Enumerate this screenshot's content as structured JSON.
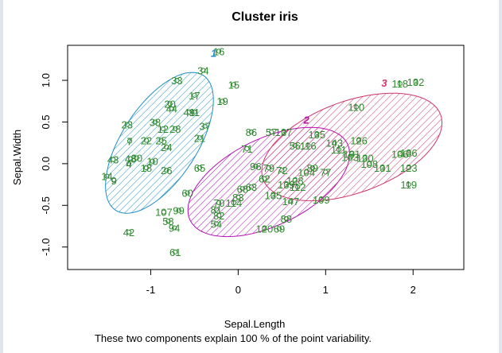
{
  "chart_data": {
    "type": "scatter",
    "title": "Cluster iris",
    "xlabel": "Sepal.Length",
    "ylabel": "Sepal.Width",
    "subtitle": "These two components explain 100 % of the point variability.",
    "xlim": [
      -1.95,
      2.58
    ],
    "ylim": [
      -1.27,
      1.42
    ],
    "x_ticks": [
      -1,
      0,
      1,
      2
    ],
    "y_ticks": [
      -1.0,
      -0.5,
      0.0,
      0.5,
      1.0
    ],
    "grid": false,
    "point_color": "#2e8b2e",
    "clusters": [
      {
        "label": "1",
        "color": "#1f8fc4",
        "center": [
          -0.28,
          1.33
        ],
        "ellipse": {
          "cx": -0.9,
          "cy": 0.25,
          "rx": 0.92,
          "ry": 0.45,
          "rotation_deg": 57
        }
      },
      {
        "label": "2",
        "color": "#b50fb5",
        "center": [
          0.78,
          0.53
        ],
        "ellipse": {
          "cx": 0.35,
          "cy": -0.22,
          "rx": 1.0,
          "ry": 0.52,
          "rotation_deg": 26
        }
      },
      {
        "label": "3",
        "color": "#d0346a",
        "center": [
          1.67,
          0.97
        ],
        "ellipse": {
          "cx": 1.3,
          "cy": 0.2,
          "rx": 1.08,
          "ry": 0.55,
          "rotation_deg": 20
        }
      }
    ],
    "points": [
      {
        "label": "16",
        "x": -0.22,
        "y": 1.35
      },
      {
        "label": "34",
        "x": -0.4,
        "y": 1.12
      },
      {
        "label": "33",
        "x": -0.7,
        "y": 1.0
      },
      {
        "label": "15",
        "x": -0.05,
        "y": 0.95
      },
      {
        "label": "17",
        "x": -0.5,
        "y": 0.82
      },
      {
        "label": "19",
        "x": -0.18,
        "y": 0.75
      },
      {
        "label": "20",
        "x": -0.78,
        "y": 0.72
      },
      {
        "label": "44",
        "x": -0.76,
        "y": 0.66
      },
      {
        "label": "11",
        "x": -0.5,
        "y": 0.62
      },
      {
        "label": "49",
        "x": -0.56,
        "y": 0.62
      },
      {
        "label": "23",
        "x": -1.27,
        "y": 0.47
      },
      {
        "label": "38",
        "x": -0.95,
        "y": 0.5
      },
      {
        "label": "37",
        "x": -0.38,
        "y": 0.45
      },
      {
        "label": "12",
        "x": -0.86,
        "y": 0.42
      },
      {
        "label": "28",
        "x": -0.72,
        "y": 0.42
      },
      {
        "label": "7",
        "x": -1.24,
        "y": 0.27
      },
      {
        "label": "22",
        "x": -1.05,
        "y": 0.28
      },
      {
        "label": "25",
        "x": -0.88,
        "y": 0.28
      },
      {
        "label": "21",
        "x": -0.44,
        "y": 0.31
      },
      {
        "label": "24",
        "x": -0.82,
        "y": 0.2
      },
      {
        "label": "43",
        "x": -1.43,
        "y": 0.05
      },
      {
        "label": "48",
        "x": -1.23,
        "y": 0.06
      },
      {
        "label": "30",
        "x": -1.16,
        "y": 0.07
      },
      {
        "label": "4",
        "x": -1.25,
        "y": 0.0
      },
      {
        "label": "10",
        "x": -0.98,
        "y": 0.03
      },
      {
        "label": "18",
        "x": -1.05,
        "y": -0.05
      },
      {
        "label": "26",
        "x": -0.82,
        "y": -0.08
      },
      {
        "label": "14",
        "x": -1.5,
        "y": -0.15
      },
      {
        "label": "9",
        "x": -1.42,
        "y": -0.2
      },
      {
        "label": "42",
        "x": -1.25,
        "y": -0.82
      },
      {
        "label": "61",
        "x": -0.72,
        "y": -1.06
      },
      {
        "label": "94",
        "x": -0.73,
        "y": -0.77
      },
      {
        "label": "58",
        "x": -0.8,
        "y": -0.69
      },
      {
        "label": "107",
        "x": -0.85,
        "y": -0.58
      },
      {
        "label": "99",
        "x": -0.68,
        "y": -0.56
      },
      {
        "label": "60",
        "x": -0.58,
        "y": -0.35
      },
      {
        "label": "65",
        "x": -0.44,
        "y": -0.05
      },
      {
        "label": "54",
        "x": -0.25,
        "y": -0.72
      },
      {
        "label": "81",
        "x": -0.25,
        "y": -0.55
      },
      {
        "label": "70",
        "x": -0.22,
        "y": -0.47
      },
      {
        "label": "82",
        "x": -0.22,
        "y": -0.62
      },
      {
        "label": "114",
        "x": -0.05,
        "y": -0.47
      },
      {
        "label": "83",
        "x": 0.0,
        "y": -0.4
      },
      {
        "label": "68",
        "x": 0.05,
        "y": -0.3
      },
      {
        "label": "63",
        "x": 0.15,
        "y": -0.28
      },
      {
        "label": "135",
        "x": 0.4,
        "y": -0.38
      },
      {
        "label": "88",
        "x": 0.55,
        "y": -0.66
      },
      {
        "label": "147",
        "x": 0.6,
        "y": -0.45
      },
      {
        "label": "120",
        "x": 0.3,
        "y": -0.78
      },
      {
        "label": "69",
        "x": 0.47,
        "y": -0.78
      },
      {
        "label": "109",
        "x": 0.95,
        "y": -0.43
      },
      {
        "label": "77",
        "x": 1.0,
        "y": -0.1
      },
      {
        "label": "71",
        "x": 0.1,
        "y": 0.18
      },
      {
        "label": "86",
        "x": 0.15,
        "y": 0.38
      },
      {
        "label": "57",
        "x": 0.38,
        "y": 0.38
      },
      {
        "label": "137",
        "x": 0.52,
        "y": 0.38
      },
      {
        "label": "96",
        "x": 0.2,
        "y": -0.03
      },
      {
        "label": "79",
        "x": 0.35,
        "y": -0.05
      },
      {
        "label": "72",
        "x": 0.5,
        "y": -0.08
      },
      {
        "label": "62",
        "x": 0.3,
        "y": -0.18
      },
      {
        "label": "139",
        "x": 0.55,
        "y": -0.25
      },
      {
        "label": "128",
        "x": 0.65,
        "y": -0.2
      },
      {
        "label": "112",
        "x": 0.68,
        "y": -0.28
      },
      {
        "label": "104",
        "x": 0.78,
        "y": -0.1
      },
      {
        "label": "56",
        "x": 0.65,
        "y": 0.22
      },
      {
        "label": "116",
        "x": 0.8,
        "y": 0.22
      },
      {
        "label": "135",
        "x": 0.9,
        "y": 0.35
      },
      {
        "label": "89",
        "x": 0.85,
        "y": -0.05
      },
      {
        "label": "143",
        "x": 1.1,
        "y": 0.25
      },
      {
        "label": "111",
        "x": 1.15,
        "y": 0.17
      },
      {
        "label": "126",
        "x": 1.38,
        "y": 0.28
      },
      {
        "label": "131",
        "x": 1.3,
        "y": 0.12
      },
      {
        "label": "130",
        "x": 1.45,
        "y": 0.07
      },
      {
        "label": "103",
        "x": 1.28,
        "y": 0.08
      },
      {
        "label": "108",
        "x": 1.5,
        "y": 0.0
      },
      {
        "label": "131",
        "x": 1.65,
        "y": -0.05
      },
      {
        "label": "106",
        "x": 1.85,
        "y": 0.12
      },
      {
        "label": "136",
        "x": 1.95,
        "y": 0.13
      },
      {
        "label": "123",
        "x": 1.95,
        "y": -0.05
      },
      {
        "label": "119",
        "x": 1.95,
        "y": -0.25
      },
      {
        "label": "110",
        "x": 1.35,
        "y": 0.68
      },
      {
        "label": "118",
        "x": 1.85,
        "y": 0.96
      },
      {
        "label": "132",
        "x": 2.03,
        "y": 0.98
      }
    ]
  }
}
